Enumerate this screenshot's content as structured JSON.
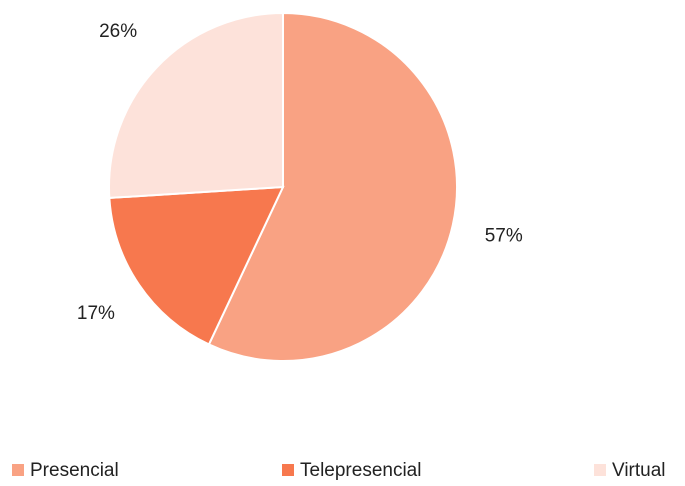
{
  "chart_data": {
    "type": "pie",
    "categories": [
      "Presencial",
      "Telepresencial",
      "Virtual"
    ],
    "values": [
      57,
      17,
      26
    ],
    "value_labels": [
      "57%",
      "17%",
      "26%"
    ],
    "colors": [
      "#F9A283",
      "#F7784E",
      "#FDE2DA"
    ],
    "legend": "bottom"
  }
}
